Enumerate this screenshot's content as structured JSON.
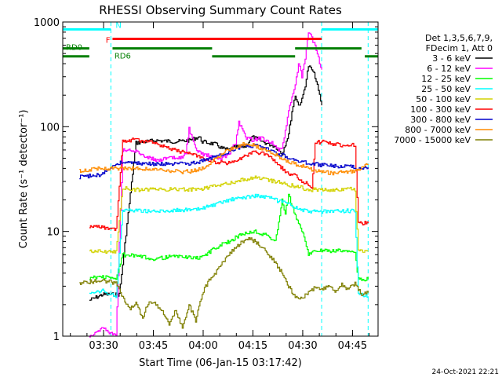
{
  "chart_data": {
    "type": "line",
    "title": "RHESSI Observing Summary Count Rates",
    "xlabel": "Start Time (06-Jan-15 03:17:42)",
    "ylabel": "Count Rate (s⁻¹ detector⁻¹)",
    "x_unit": "minutes after 03:17:42",
    "xlim": [
      0,
      95
    ],
    "ylim": [
      1,
      1000
    ],
    "yscale": "log",
    "x_ticks": [
      {
        "x": 12.3,
        "label": "03:30"
      },
      {
        "x": 27.3,
        "label": "03:45"
      },
      {
        "x": 42.3,
        "label": "04:00"
      },
      {
        "x": 57.3,
        "label": "04:15"
      },
      {
        "x": 72.3,
        "label": "04:30"
      },
      {
        "x": 87.3,
        "label": "04:45"
      }
    ],
    "y_ticks": [
      {
        "y": 1,
        "label": "1"
      },
      {
        "y": 10,
        "label": "10"
      },
      {
        "y": 100,
        "label": "100"
      },
      {
        "y": 1000,
        "label": "1000"
      }
    ],
    "legend_header": [
      "Det 1,3,5,6,7,9,",
      "FDecim 1, Att 0"
    ],
    "series": [
      {
        "name": "3 - 6 keV",
        "color": "#000000",
        "x": [
          8,
          12,
          17,
          22,
          28,
          34,
          38,
          41,
          42,
          46,
          48,
          50,
          52,
          55,
          57,
          59,
          61,
          64,
          65,
          66,
          68,
          69,
          70,
          71,
          72,
          73,
          74,
          75,
          76,
          77,
          78
        ],
        "y": [
          2.2,
          2.5,
          2.5,
          70,
          74,
          72,
          74,
          80,
          72,
          68,
          62,
          60,
          64,
          65,
          80,
          75,
          70,
          65,
          60,
          55,
          85,
          140,
          200,
          160,
          180,
          250,
          380,
          350,
          300,
          220,
          160
        ]
      },
      {
        "name": "6 - 12 keV",
        "color": "#ff00ff",
        "x": [
          8,
          12,
          16,
          18,
          22,
          25,
          28,
          32,
          35,
          37,
          38,
          40,
          42,
          46,
          48,
          50,
          52,
          53,
          55,
          57,
          60,
          63,
          65,
          66,
          68,
          70,
          71,
          72,
          73,
          74,
          75,
          76,
          77,
          78
        ],
        "y": [
          1.0,
          1.2,
          1.0,
          60,
          58,
          52,
          48,
          50,
          50,
          55,
          95,
          60,
          55,
          50,
          50,
          55,
          70,
          110,
          80,
          75,
          78,
          70,
          60,
          60,
          140,
          250,
          400,
          300,
          450,
          800,
          700,
          600,
          450,
          350
        ]
      },
      {
        "name": "12 - 25 keV",
        "color": "#00ff00",
        "x": [
          8,
          12,
          16,
          18,
          22,
          27,
          32,
          36,
          40,
          43,
          46,
          50,
          54,
          58,
          62,
          64,
          65,
          66,
          67,
          68,
          69,
          70,
          71,
          72,
          73,
          74,
          75,
          76,
          77,
          78,
          82,
          86,
          88,
          89,
          92
        ],
        "y": [
          3.6,
          3.7,
          3.5,
          6.0,
          5.8,
          5.5,
          5.7,
          5.8,
          5.5,
          6.0,
          7.0,
          8.0,
          9.5,
          10.0,
          9.0,
          8.0,
          12,
          20,
          15,
          22,
          18,
          14,
          12,
          10,
          8,
          6,
          6.5,
          6.8,
          6.6,
          6.5,
          6.5,
          6.6,
          6.3,
          3.5,
          3.5
        ]
      },
      {
        "name": "25 - 50 keV",
        "color": "#00ffff",
        "x": [
          8,
          12,
          16,
          18,
          22,
          28,
          34,
          40,
          43,
          46,
          50,
          54,
          58,
          62,
          66,
          70,
          72,
          74,
          76,
          78,
          82,
          86,
          88,
          89,
          92
        ],
        "y": [
          2.5,
          2.7,
          2.4,
          16,
          16,
          15.5,
          16,
          16,
          17,
          18,
          20,
          21,
          22,
          21,
          19,
          17,
          16,
          15.5,
          15.5,
          15.5,
          15.5,
          15.8,
          15.5,
          2.5,
          2.4
        ]
      },
      {
        "name": "50 - 100 keV",
        "color": "#d2d200",
        "x": [
          8,
          12,
          16,
          18,
          22,
          28,
          34,
          40,
          43,
          46,
          50,
          54,
          58,
          62,
          66,
          70,
          72,
          74,
          76,
          78,
          82,
          86,
          88,
          89,
          92
        ],
        "y": [
          6.5,
          6.5,
          6.3,
          26,
          25,
          25,
          25.5,
          25,
          26,
          27,
          29,
          31,
          33,
          31,
          29,
          27,
          26,
          25,
          25,
          25,
          25,
          25.5,
          25,
          6.5,
          6.5
        ]
      },
      {
        "name": "100 - 300 keV",
        "color": "#ff0000",
        "x": [
          8,
          12,
          16,
          18,
          22,
          25,
          28,
          32,
          35,
          38,
          41,
          43,
          46,
          50,
          54,
          57,
          60,
          63,
          66,
          68,
          70,
          72,
          74,
          75,
          76,
          78,
          82,
          86,
          88,
          89,
          92
        ],
        "y": [
          11,
          11,
          10.5,
          72,
          76,
          72,
          70,
          62,
          58,
          56,
          52,
          48,
          46,
          45,
          50,
          58,
          56,
          50,
          40,
          36,
          34,
          30,
          28,
          26,
          70,
          72,
          68,
          66,
          68,
          12,
          12
        ]
      },
      {
        "name": "300 - 800 keV",
        "color": "#0000cc",
        "x": [
          5,
          8,
          12,
          14,
          16,
          18,
          22,
          28,
          34,
          40,
          43,
          46,
          50,
          54,
          58,
          62,
          66,
          70,
          72,
          74,
          76,
          78,
          82,
          86,
          88,
          90,
          92
        ],
        "y": [
          33,
          34,
          35,
          40,
          44,
          46,
          45,
          44,
          44,
          45,
          48,
          52,
          58,
          65,
          66,
          60,
          54,
          48,
          46,
          45,
          44,
          43,
          42,
          42,
          41,
          40,
          41
        ]
      },
      {
        "name": "800 - 7000 keV",
        "color": "#ff8c00",
        "x": [
          5,
          8,
          12,
          16,
          20,
          24,
          28,
          32,
          36,
          40,
          43,
          46,
          50,
          54,
          58,
          62,
          66,
          70,
          72,
          74,
          76,
          78,
          82,
          86,
          88,
          90,
          92
        ],
        "y": [
          38,
          39,
          40,
          40,
          40,
          40,
          39,
          38,
          37,
          38,
          42,
          50,
          60,
          68,
          66,
          58,
          50,
          44,
          42,
          40,
          38,
          37,
          36,
          37,
          38,
          40,
          44
        ]
      },
      {
        "name": "7000 - 15000 keV",
        "color": "#7f7f00",
        "x": [
          5,
          8,
          12,
          16,
          18,
          20,
          22,
          24,
          26,
          28,
          30,
          32,
          34,
          36,
          38,
          40,
          42,
          44,
          46,
          48,
          50,
          52,
          54,
          56,
          58,
          60,
          62,
          64,
          66,
          68,
          70,
          72,
          74,
          76,
          78,
          80,
          82,
          84,
          86,
          88,
          90,
          92
        ],
        "y": [
          3.2,
          3.3,
          3.4,
          3.2,
          2.3,
          1.8,
          2.1,
          1.5,
          2.2,
          2.0,
          1.7,
          1.3,
          1.8,
          1.2,
          2.0,
          1.4,
          2.6,
          3.4,
          4.0,
          5.0,
          6.0,
          7.0,
          8.0,
          8.5,
          8.0,
          7.0,
          6.0,
          5.0,
          4.0,
          3.0,
          2.4,
          2.3,
          2.6,
          2.9,
          2.8,
          3.0,
          2.7,
          3.1,
          2.8,
          3.2,
          2.5,
          2.6
        ]
      }
    ],
    "state_bars": [
      {
        "label": "N",
        "color": "#00ffff",
        "y": 850,
        "segments": [
          [
            0,
            14.5
          ],
          [
            78,
            95
          ]
        ]
      },
      {
        "label": "F",
        "color": "#ff0000",
        "y": 690,
        "segments": [
          [
            15,
            78
          ]
        ]
      },
      {
        "label": "RD0",
        "color": "#007f00",
        "y": 560,
        "segments": [
          [
            0,
            8
          ],
          [
            15,
            45
          ],
          [
            70,
            90
          ]
        ]
      },
      {
        "label": "RD6",
        "color": "#007f00",
        "y": 470,
        "segments": [
          [
            0,
            8
          ],
          [
            45,
            70
          ],
          [
            91,
            95
          ]
        ]
      }
    ],
    "vertical_markers": [
      14.5,
      78,
      92
    ],
    "timestamp": "24-Oct-2021 22:21"
  }
}
